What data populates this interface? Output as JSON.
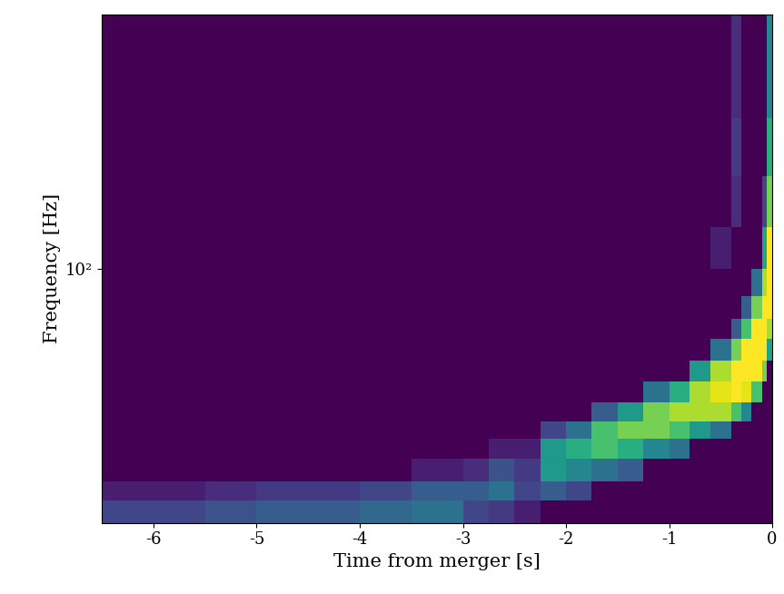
{
  "chart_data": {
    "type": "heatmap",
    "x_label": "Time from merger [s]",
    "y_label": "Frequency [Hz]",
    "log": "y",
    "xlim": [
      -6.5,
      0
    ],
    "ylim": [
      20,
      500
    ],
    "xticks": [
      -6,
      -5,
      -4,
      -3,
      -2,
      -1,
      0
    ],
    "yticks": [
      {
        "value": 100,
        "label": "10²"
      }
    ],
    "x": [
      -6.5,
      -6,
      -5.5,
      -5,
      -4.5,
      -4,
      -3.5,
      -3,
      -2.75,
      -2.5,
      -2.25,
      -2,
      -1.75,
      -1.5,
      -1.25,
      -1,
      -0.8,
      -0.6,
      -0.4,
      -0.3,
      -0.2,
      -0.1,
      -0.05,
      0
    ],
    "y": [
      20,
      23,
      26,
      30,
      34,
      38,
      43,
      49,
      56,
      64,
      73,
      84,
      100,
      130,
      180,
      260,
      500
    ],
    "cells": [
      [
        6,
        6,
        7,
        8,
        8,
        9,
        10,
        6,
        5,
        3,
        1,
        1,
        1,
        1,
        1,
        1,
        1,
        1,
        1,
        1,
        1,
        1,
        1
      ],
      [
        3,
        3,
        4,
        5,
        5,
        6,
        8,
        8,
        10,
        6,
        8,
        6,
        1,
        1,
        1,
        1,
        1,
        1,
        1,
        1,
        1,
        1,
        1
      ],
      [
        1,
        1,
        1,
        1,
        1,
        1,
        3,
        4,
        7,
        5,
        14,
        12,
        10,
        8,
        1,
        1,
        1,
        1,
        1,
        1,
        1,
        1,
        1
      ],
      [
        1,
        1,
        1,
        1,
        1,
        1,
        1,
        1,
        3,
        3,
        14,
        16,
        18,
        16,
        12,
        10,
        1,
        1,
        1,
        1,
        1,
        1,
        1
      ],
      [
        1,
        1,
        1,
        1,
        1,
        1,
        1,
        1,
        1,
        1,
        6,
        10,
        18,
        20,
        20,
        18,
        14,
        10,
        1,
        1,
        1,
        1,
        1
      ],
      [
        1,
        1,
        1,
        1,
        1,
        1,
        1,
        1,
        1,
        1,
        1,
        1,
        8,
        14,
        20,
        22,
        22,
        22,
        18,
        12,
        1,
        1,
        1
      ],
      [
        1,
        1,
        1,
        1,
        1,
        1,
        1,
        1,
        1,
        1,
        1,
        1,
        1,
        1,
        10,
        16,
        22,
        24,
        25,
        24,
        18,
        1,
        1
      ],
      [
        1,
        1,
        1,
        1,
        1,
        1,
        1,
        1,
        1,
        1,
        1,
        1,
        1,
        1,
        1,
        1,
        14,
        22,
        25,
        25,
        25,
        20,
        1
      ],
      [
        1,
        1,
        1,
        1,
        1,
        1,
        1,
        1,
        1,
        1,
        1,
        1,
        1,
        1,
        1,
        1,
        1,
        10,
        20,
        25,
        25,
        25,
        15
      ],
      [
        1,
        1,
        1,
        1,
        1,
        1,
        1,
        1,
        1,
        1,
        1,
        1,
        1,
        1,
        1,
        1,
        1,
        1,
        8,
        18,
        25,
        25,
        22
      ],
      [
        1,
        1,
        1,
        1,
        1,
        1,
        1,
        1,
        1,
        1,
        1,
        1,
        1,
        1,
        1,
        1,
        1,
        1,
        1,
        8,
        20,
        25,
        25
      ],
      [
        1,
        1,
        1,
        1,
        1,
        1,
        1,
        1,
        1,
        1,
        1,
        1,
        1,
        1,
        1,
        1,
        1,
        1,
        1,
        1,
        10,
        22,
        25
      ],
      [
        1,
        1,
        1,
        1,
        1,
        1,
        1,
        1,
        1,
        1,
        1,
        1,
        1,
        1,
        1,
        1,
        1,
        3,
        1,
        1,
        1,
        15,
        25
      ],
      [
        1,
        1,
        1,
        1,
        1,
        1,
        1,
        1,
        1,
        1,
        1,
        1,
        1,
        1,
        1,
        1,
        1,
        1,
        4,
        1,
        1,
        6,
        20
      ],
      [
        1,
        1,
        1,
        1,
        1,
        1,
        1,
        1,
        1,
        1,
        1,
        1,
        1,
        1,
        1,
        1,
        1,
        1,
        5,
        1,
        1,
        1,
        16
      ],
      [
        1,
        1,
        1,
        1,
        1,
        1,
        1,
        1,
        1,
        1,
        1,
        1,
        1,
        1,
        1,
        1,
        1,
        1,
        4,
        1,
        1,
        1,
        12
      ]
    ]
  }
}
